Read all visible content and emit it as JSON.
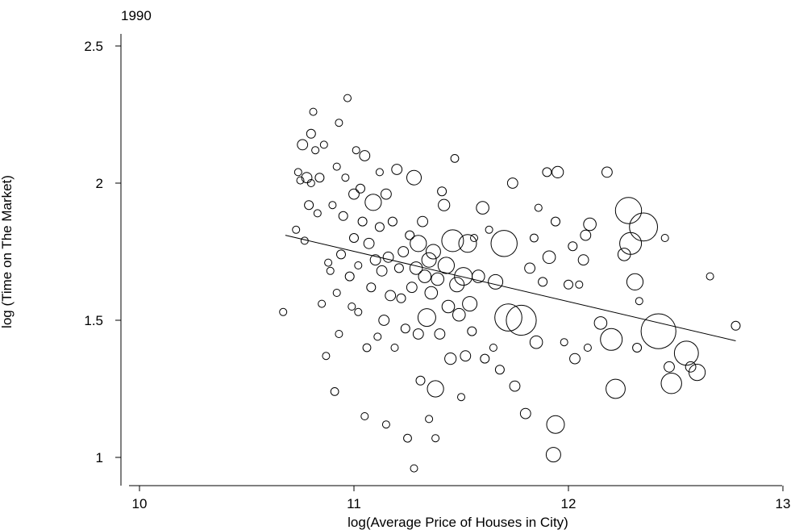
{
  "chart_data": {
    "type": "scatter",
    "title": "1990",
    "xlabel": "log(Average Price of Houses in City)",
    "ylabel": "log (Time on The Market)",
    "xlim": [
      10,
      13
    ],
    "ylim": [
      0.9,
      2.56
    ],
    "x_ticks": [
      "10",
      "11",
      "12",
      "13"
    ],
    "y_ticks": [
      "1",
      "1.5",
      "2",
      "2.5"
    ],
    "grid": false,
    "marker": "hollow circle, area proportional to weight",
    "fit_line": {
      "x": [
        10.68,
        12.78
      ],
      "y": [
        1.81,
        1.425
      ]
    },
    "points": [
      [
        10.67,
        1.53,
        1
      ],
      [
        10.73,
        1.83,
        1
      ],
      [
        10.74,
        2.04,
        1
      ],
      [
        10.75,
        2.01,
        1
      ],
      [
        10.76,
        2.14,
        2
      ],
      [
        10.77,
        1.79,
        1
      ],
      [
        10.78,
        2.02,
        2
      ],
      [
        10.79,
        1.92,
        1.5
      ],
      [
        10.8,
        2.18,
        1.5
      ],
      [
        10.8,
        2.0,
        1
      ],
      [
        10.81,
        2.26,
        1
      ],
      [
        10.82,
        2.12,
        1
      ],
      [
        10.83,
        1.89,
        1
      ],
      [
        10.84,
        2.02,
        1.5
      ],
      [
        10.85,
        1.56,
        1
      ],
      [
        10.86,
        2.14,
        1
      ],
      [
        10.87,
        1.37,
        1
      ],
      [
        10.88,
        1.71,
        1
      ],
      [
        10.89,
        1.68,
        1
      ],
      [
        10.9,
        1.92,
        1
      ],
      [
        10.91,
        1.24,
        1.2
      ],
      [
        10.92,
        2.06,
        1
      ],
      [
        10.92,
        1.6,
        1
      ],
      [
        10.93,
        2.22,
        1
      ],
      [
        10.93,
        1.45,
        1
      ],
      [
        10.94,
        1.74,
        1.5
      ],
      [
        10.95,
        1.88,
        1.5
      ],
      [
        10.96,
        2.02,
        1
      ],
      [
        10.97,
        2.31,
        1
      ],
      [
        10.98,
        1.66,
        1.5
      ],
      [
        10.99,
        1.55,
        1
      ],
      [
        11.0,
        1.96,
        2
      ],
      [
        11.0,
        1.8,
        1.5
      ],
      [
        11.01,
        2.12,
        1
      ],
      [
        11.02,
        1.7,
        1
      ],
      [
        11.02,
        1.53,
        1
      ],
      [
        11.03,
        1.98,
        1.5
      ],
      [
        11.04,
        1.86,
        1.5
      ],
      [
        11.05,
        2.1,
        2
      ],
      [
        11.05,
        1.15,
        1
      ],
      [
        11.06,
        1.4,
        1.2
      ],
      [
        11.07,
        1.78,
        2
      ],
      [
        11.08,
        1.62,
        1.5
      ],
      [
        11.09,
        1.93,
        5
      ],
      [
        11.1,
        1.72,
        2
      ],
      [
        11.11,
        1.44,
        1
      ],
      [
        11.12,
        1.84,
        1.5
      ],
      [
        11.12,
        2.04,
        1
      ],
      [
        11.13,
        1.68,
        2
      ],
      [
        11.14,
        1.5,
        2
      ],
      [
        11.15,
        1.12,
        1
      ],
      [
        11.15,
        1.96,
        2
      ],
      [
        11.16,
        1.73,
        2
      ],
      [
        11.17,
        1.59,
        2
      ],
      [
        11.18,
        1.86,
        1.5
      ],
      [
        11.19,
        1.4,
        1
      ],
      [
        11.2,
        2.05,
        2
      ],
      [
        11.21,
        1.69,
        1.5
      ],
      [
        11.22,
        1.58,
        1.5
      ],
      [
        11.23,
        1.75,
        2
      ],
      [
        11.24,
        1.47,
        1.5
      ],
      [
        11.25,
        1.07,
        1.2
      ],
      [
        11.26,
        1.81,
        1.5
      ],
      [
        11.27,
        1.62,
        2
      ],
      [
        11.28,
        2.02,
        4
      ],
      [
        11.28,
        0.96,
        1
      ],
      [
        11.29,
        1.69,
        3
      ],
      [
        11.3,
        1.78,
        5
      ],
      [
        11.3,
        1.45,
        2
      ],
      [
        11.31,
        1.28,
        1.5
      ],
      [
        11.32,
        1.86,
        2
      ],
      [
        11.33,
        1.66,
        3
      ],
      [
        11.34,
        1.51,
        6
      ],
      [
        11.35,
        1.72,
        4
      ],
      [
        11.35,
        1.14,
        1
      ],
      [
        11.36,
        1.6,
        3
      ],
      [
        11.37,
        1.75,
        4
      ],
      [
        11.38,
        1.25,
        5
      ],
      [
        11.38,
        1.07,
        1
      ],
      [
        11.39,
        1.65,
        3
      ],
      [
        11.4,
        1.45,
        2
      ],
      [
        11.41,
        1.97,
        1.5
      ],
      [
        11.42,
        1.92,
        2.5
      ],
      [
        11.43,
        1.7,
        5
      ],
      [
        11.44,
        1.55,
        3
      ],
      [
        11.45,
        1.36,
        2.5
      ],
      [
        11.46,
        1.79,
        9
      ],
      [
        11.47,
        2.09,
        1.2
      ],
      [
        11.48,
        1.63,
        4
      ],
      [
        11.49,
        1.52,
        3
      ],
      [
        11.5,
        1.22,
        1
      ],
      [
        11.51,
        1.66,
        6
      ],
      [
        11.52,
        1.37,
        2
      ],
      [
        11.53,
        1.78,
        6
      ],
      [
        11.54,
        1.56,
        4
      ],
      [
        11.55,
        1.46,
        1.5
      ],
      [
        11.56,
        1.8,
        1
      ],
      [
        11.58,
        1.66,
        3
      ],
      [
        11.6,
        1.91,
        3
      ],
      [
        11.61,
        1.36,
        1.5
      ],
      [
        11.63,
        1.83,
        1
      ],
      [
        11.65,
        1.4,
        1
      ],
      [
        11.66,
        1.64,
        4
      ],
      [
        11.68,
        1.32,
        1.5
      ],
      [
        11.7,
        1.78,
        13
      ],
      [
        11.72,
        1.51,
        14
      ],
      [
        11.74,
        2.0,
        2
      ],
      [
        11.75,
        1.26,
        2
      ],
      [
        11.78,
        1.5,
        17
      ],
      [
        11.8,
        1.16,
        2
      ],
      [
        11.82,
        1.69,
        2
      ],
      [
        11.84,
        1.8,
        1.2
      ],
      [
        11.85,
        1.42,
        3
      ],
      [
        11.86,
        1.91,
        1
      ],
      [
        11.88,
        1.64,
        1.5
      ],
      [
        11.9,
        2.04,
        1.5
      ],
      [
        11.91,
        1.73,
        3
      ],
      [
        11.93,
        1.01,
        4
      ],
      [
        11.94,
        1.12,
        6
      ],
      [
        11.94,
        1.86,
        1.5
      ],
      [
        11.95,
        2.04,
        2.5
      ],
      [
        11.98,
        1.42,
        1
      ],
      [
        12.0,
        1.63,
        1.5
      ],
      [
        12.02,
        1.77,
        1.5
      ],
      [
        12.03,
        1.36,
        2
      ],
      [
        12.05,
        1.63,
        1
      ],
      [
        12.07,
        1.72,
        2
      ],
      [
        12.08,
        1.81,
        2
      ],
      [
        12.09,
        1.4,
        1
      ],
      [
        12.1,
        1.85,
        3
      ],
      [
        12.15,
        1.49,
        3
      ],
      [
        12.18,
        2.04,
        2
      ],
      [
        12.2,
        1.43,
        9
      ],
      [
        12.22,
        1.25,
        7
      ],
      [
        12.26,
        1.74,
        3
      ],
      [
        12.28,
        1.9,
        13
      ],
      [
        12.29,
        1.78,
        9
      ],
      [
        12.31,
        1.64,
        5
      ],
      [
        12.32,
        1.4,
        1.5
      ],
      [
        12.33,
        1.57,
        1
      ],
      [
        12.35,
        1.84,
        15
      ],
      [
        12.42,
        1.46,
        23
      ],
      [
        12.45,
        1.8,
        1
      ],
      [
        12.47,
        1.33,
        2
      ],
      [
        12.48,
        1.27,
        8
      ],
      [
        12.55,
        1.38,
        11
      ],
      [
        12.57,
        1.33,
        2
      ],
      [
        12.6,
        1.31,
        5
      ],
      [
        12.66,
        1.66,
        1
      ],
      [
        12.78,
        1.48,
        1.5
      ]
    ]
  }
}
